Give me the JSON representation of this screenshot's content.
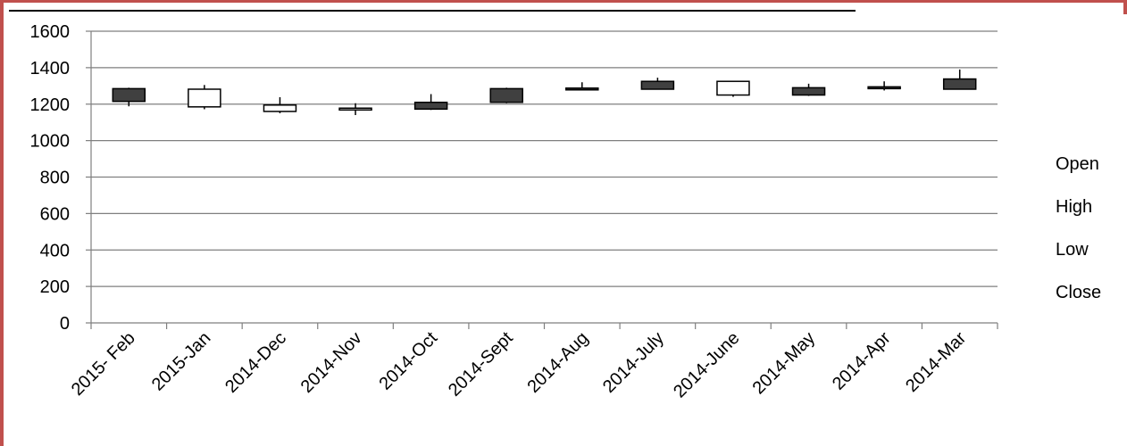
{
  "colors": {
    "frame": "#c0504d",
    "grid": "#7f7f7f",
    "bearish_fill": "#404040",
    "bullish_fill": "#ffffff",
    "outline": "#000000"
  },
  "chart_data": {
    "type": "candlestick",
    "title": "",
    "xlabel": "",
    "ylabel": "",
    "ylim": [
      0,
      1600
    ],
    "ytick_step": 200,
    "grid": true,
    "legend_position": "right",
    "legend": [
      "Open",
      "High",
      "Low",
      "Close"
    ],
    "categories": [
      "2015- Feb",
      "2015-Jan",
      "2014-Dec",
      "2014-Nov",
      "2014-Oct",
      "2014-Sept",
      "2014-Aug",
      "2014-July",
      "2014-June",
      "2014-May",
      "2014-Apr",
      "2014-Mar"
    ],
    "series": [
      {
        "name": "Open",
        "values": [
          1285,
          1185,
          1160,
          1170,
          1210,
          1285,
          1288,
          1325,
          1250,
          1290,
          1295,
          1338
        ]
      },
      {
        "name": "High",
        "values": [
          1290,
          1305,
          1238,
          1205,
          1255,
          1290,
          1320,
          1345,
          1328,
          1312,
          1325,
          1390
        ]
      },
      {
        "name": "Low",
        "values": [
          1188,
          1172,
          1150,
          1140,
          1168,
          1205,
          1278,
          1280,
          1240,
          1245,
          1275,
          1282
        ]
      },
      {
        "name": "Close",
        "values": [
          1215,
          1282,
          1195,
          1178,
          1173,
          1210,
          1282,
          1282,
          1325,
          1250,
          1285,
          1282
        ]
      }
    ]
  }
}
